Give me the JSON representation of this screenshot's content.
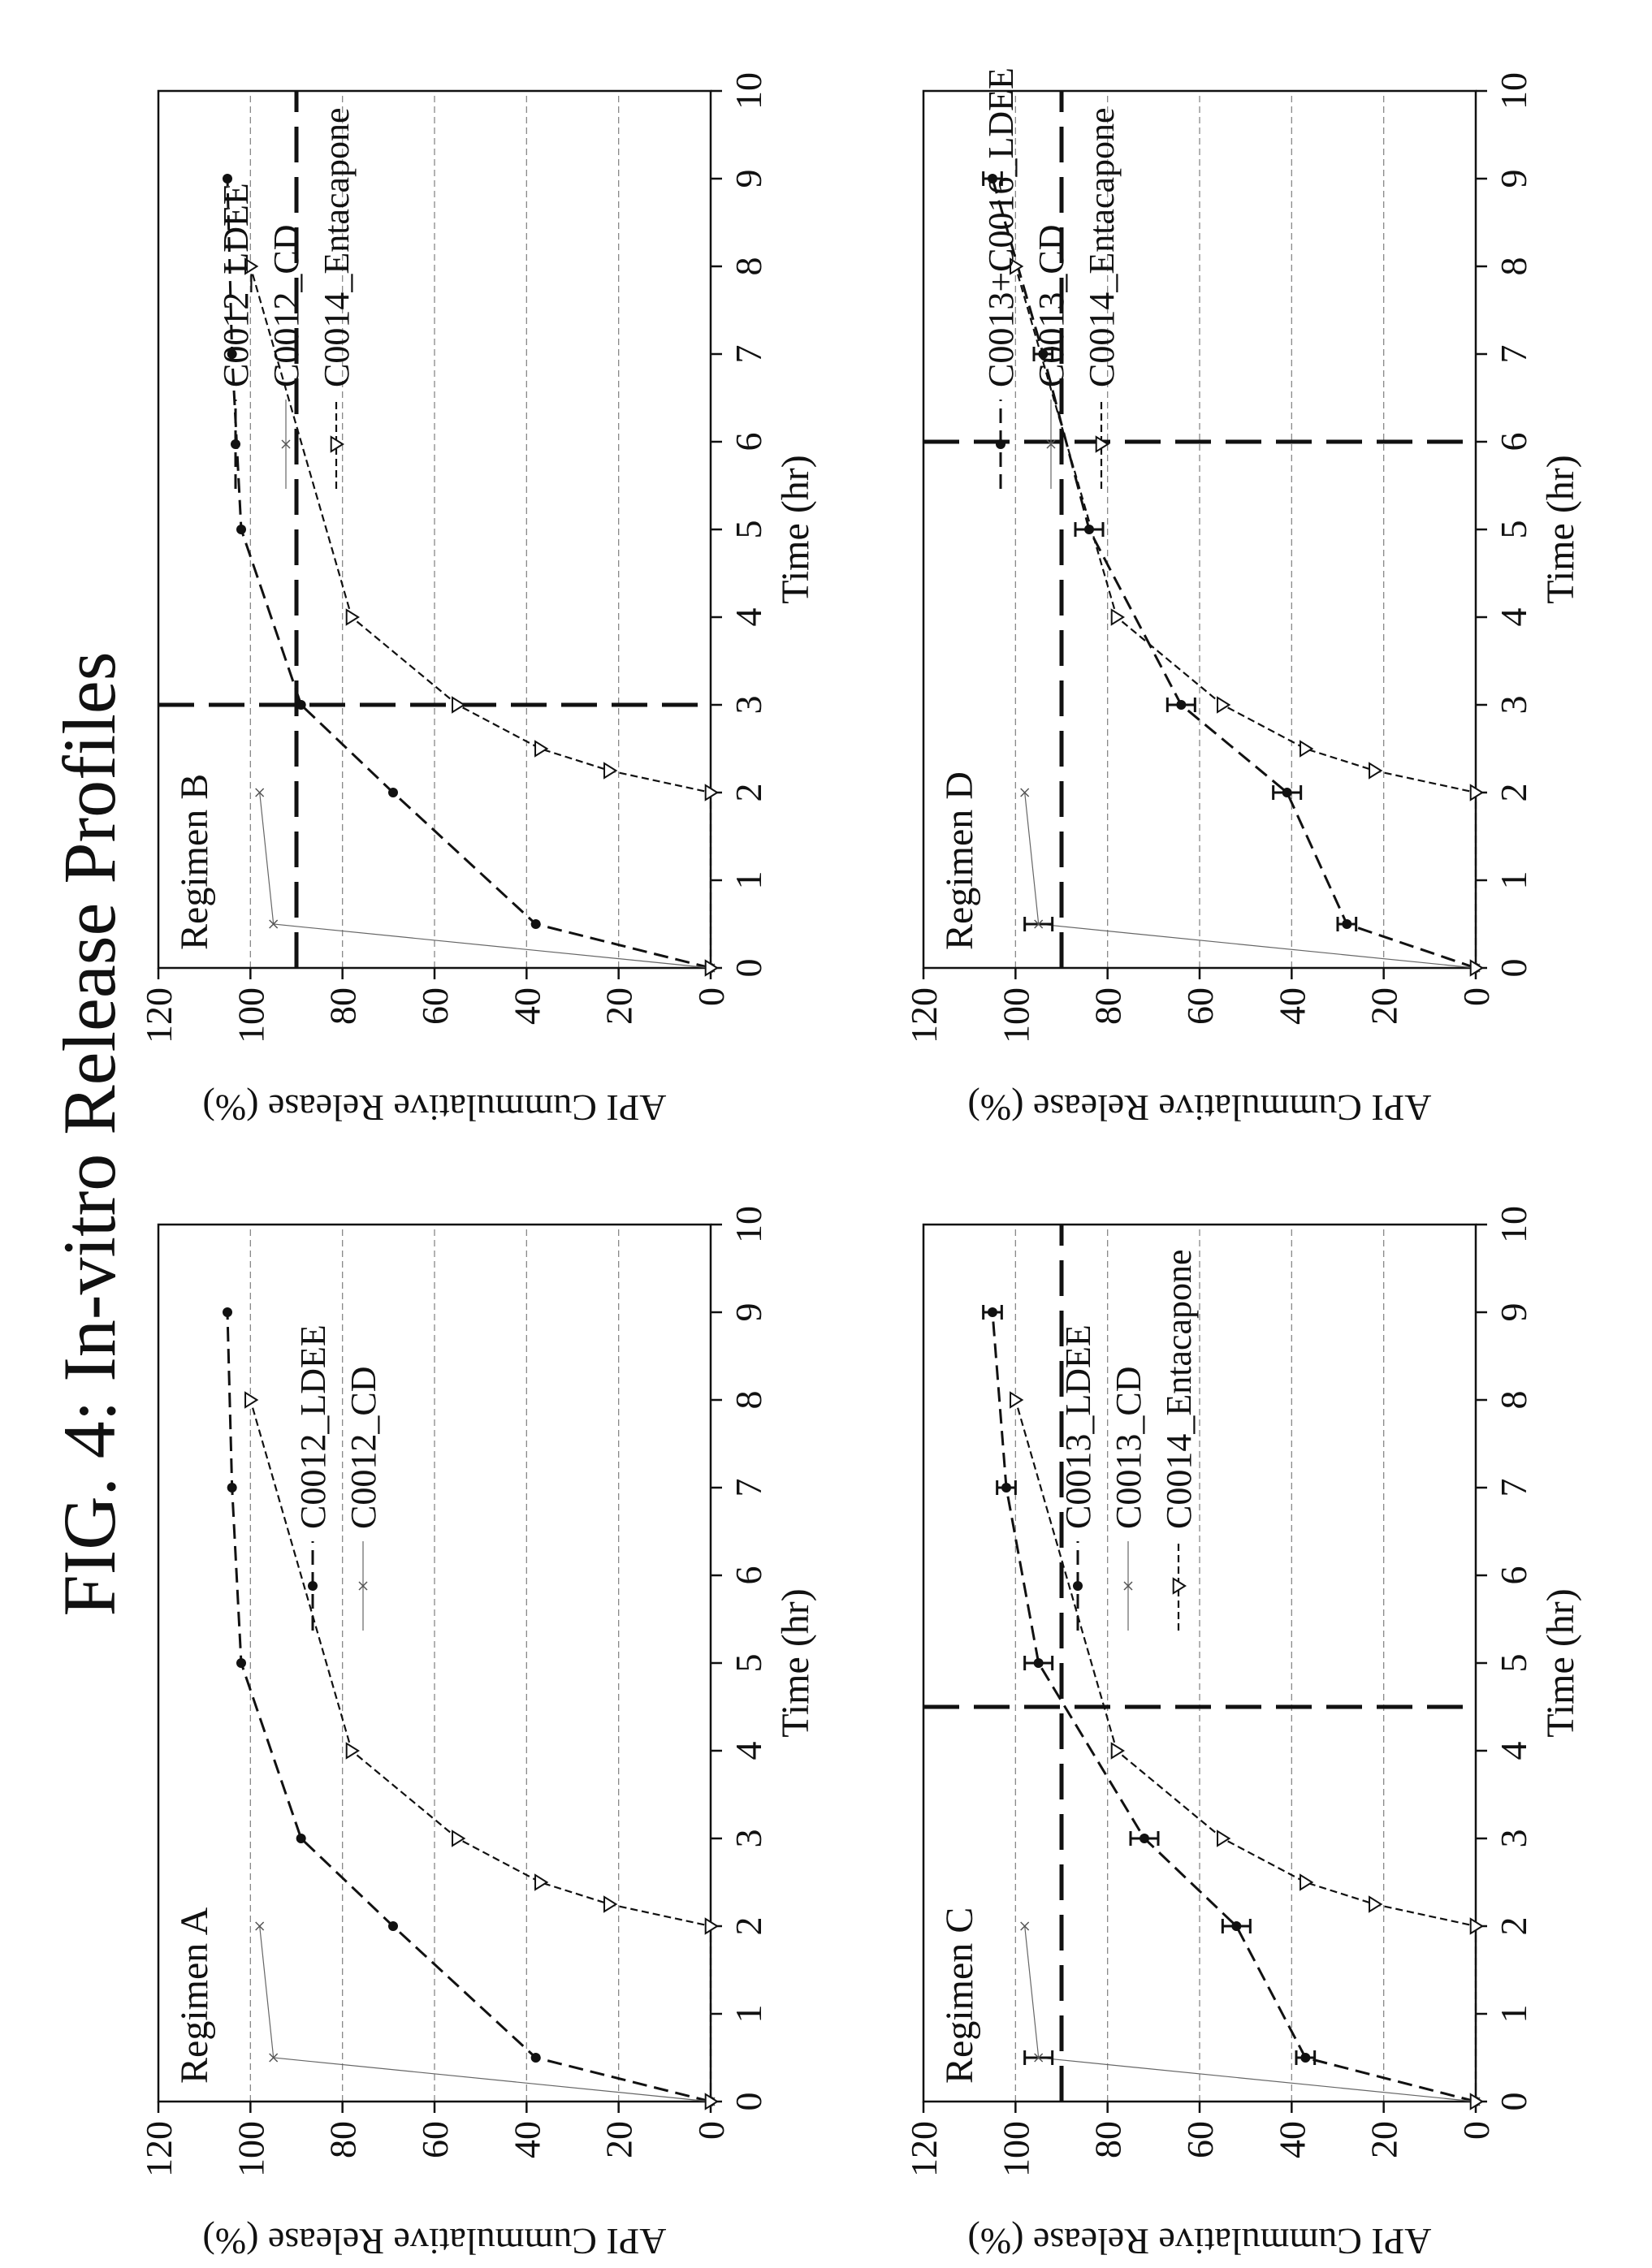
{
  "title": "FIG. 4: In-vitro Release Profiles",
  "chart_data": [
    {
      "type": "line",
      "title": "Regimen A",
      "xlabel": "Time (hr)",
      "ylabel": "API Cummulative Release (%)",
      "xlim": [
        0,
        10
      ],
      "ylim": [
        0,
        120
      ],
      "xticks": [
        "0",
        "1",
        "2",
        "3",
        "4",
        "5",
        "6",
        "7",
        "8",
        "9",
        "10"
      ],
      "yticks": [
        "0",
        "20",
        "40",
        "60",
        "80",
        "100",
        "120"
      ],
      "grid": "horizontal dashed",
      "legend": "center-right",
      "series": [
        {
          "name": "C0012_LDEE",
          "marker": "dot",
          "line": "dashed",
          "x": [
            0,
            0.5,
            2,
            3,
            5,
            7,
            9
          ],
          "y": [
            0,
            38,
            69,
            89,
            102,
            104,
            105
          ]
        },
        {
          "name": "C0012_CD",
          "marker": "x",
          "line": "solid-thin",
          "x": [
            0,
            0.5,
            2
          ],
          "y": [
            0,
            95,
            98
          ]
        }
      ],
      "extra_series": [
        {
          "marker": "triangle",
          "line": "dashed-fine",
          "x": [
            0,
            2,
            2.25,
            2.5,
            3,
            4,
            8
          ],
          "y": [
            0,
            0,
            22,
            37,
            55,
            78,
            100
          ]
        }
      ]
    },
    {
      "type": "line",
      "title": "Regimen B",
      "xlabel": "Time (hr)",
      "ylabel": "API Cummulative Release (%)",
      "xlim": [
        0,
        10
      ],
      "ylim": [
        0,
        120
      ],
      "xticks": [
        "0",
        "1",
        "2",
        "3",
        "4",
        "5",
        "6",
        "7",
        "8",
        "9",
        "10"
      ],
      "yticks": [
        "0",
        "20",
        "40",
        "60",
        "80",
        "100",
        "120"
      ],
      "grid": "horizontal dashed",
      "legend": "top-right",
      "threshold_y": 90,
      "threshold_x": 3,
      "series": [
        {
          "name": "C0012_LDEE",
          "marker": "dot",
          "line": "dashed",
          "x": [
            0,
            0.5,
            2,
            3,
            5,
            7,
            9
          ],
          "y": [
            0,
            38,
            69,
            89,
            102,
            104,
            105
          ]
        },
        {
          "name": "C0012_CD",
          "marker": "x",
          "line": "solid-thin",
          "x": [
            0,
            0.5,
            2
          ],
          "y": [
            0,
            95,
            98
          ]
        },
        {
          "name": "C0014_Entacapone",
          "marker": "triangle",
          "line": "dashed-fine",
          "x": [
            0,
            2,
            2.25,
            2.5,
            3,
            4,
            8
          ],
          "y": [
            0,
            0,
            22,
            37,
            55,
            78,
            100
          ]
        }
      ]
    },
    {
      "type": "line",
      "title": "Regimen C",
      "xlabel": "Time (hr)",
      "ylabel": "API Cummulative Release (%)",
      "xlim": [
        0,
        10
      ],
      "ylim": [
        0,
        120
      ],
      "xticks": [
        "0",
        "1",
        "2",
        "3",
        "4",
        "5",
        "6",
        "7",
        "8",
        "9",
        "10"
      ],
      "yticks": [
        "0",
        "20",
        "40",
        "60",
        "80",
        "100",
        "120"
      ],
      "grid": "horizontal dashed",
      "legend": "center-right",
      "threshold_y": 90,
      "threshold_x": 4.5,
      "series": [
        {
          "name": "C0013_LDEE",
          "marker": "dot",
          "line": "dashed",
          "x": [
            0,
            0.5,
            2,
            3,
            5,
            7,
            9
          ],
          "y": [
            0,
            37,
            52,
            72,
            95,
            102,
            105
          ],
          "err": [
            0,
            2,
            3,
            3,
            3,
            2,
            2
          ]
        },
        {
          "name": "C0013_CD",
          "marker": "x",
          "line": "solid-thin",
          "x": [
            0,
            0.5,
            2
          ],
          "y": [
            0,
            95,
            98
          ],
          "err": [
            0,
            3,
            0
          ]
        },
        {
          "name": "C0014_Entacapone",
          "marker": "triangle",
          "line": "dashed-fine",
          "x": [
            0,
            2,
            2.25,
            2.5,
            3,
            4,
            8
          ],
          "y": [
            0,
            0,
            22,
            37,
            55,
            78,
            100
          ]
        }
      ]
    },
    {
      "type": "line",
      "title": "Regimen D",
      "xlabel": "Time (hr)",
      "ylabel": "API Cummulative Release (%)",
      "xlim": [
        0,
        10
      ],
      "ylim": [
        0,
        120
      ],
      "xticks": [
        "0",
        "1",
        "2",
        "3",
        "4",
        "5",
        "6",
        "7",
        "8",
        "9",
        "10"
      ],
      "yticks": [
        "0",
        "20",
        "40",
        "60",
        "80",
        "100",
        "120"
      ],
      "grid": "horizontal dashed",
      "legend": "top-right",
      "threshold_y": 90,
      "threshold_x": 6,
      "series": [
        {
          "name": "C0013+C0016_LDEE",
          "marker": "dot",
          "line": "dashed",
          "x": [
            0,
            0.5,
            2,
            3,
            5,
            7,
            9
          ],
          "y": [
            0,
            28,
            41,
            64,
            84,
            94,
            105
          ],
          "err": [
            0,
            2,
            3,
            3,
            3,
            2,
            2
          ]
        },
        {
          "name": "C0013_CD",
          "marker": "x",
          "line": "solid-thin",
          "x": [
            0,
            0.5,
            2
          ],
          "y": [
            0,
            95,
            98
          ],
          "err": [
            0,
            3,
            0
          ]
        },
        {
          "name": "C0014_Entacapone",
          "marker": "triangle",
          "line": "dashed-fine",
          "x": [
            0,
            2,
            2.25,
            2.5,
            3,
            4,
            8
          ],
          "y": [
            0,
            0,
            22,
            37,
            55,
            78,
            100
          ]
        }
      ]
    }
  ]
}
